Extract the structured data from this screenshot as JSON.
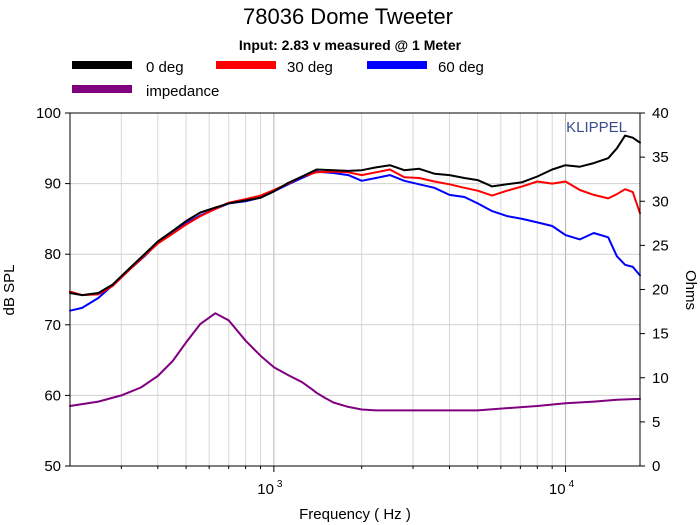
{
  "chart_data": {
    "type": "line",
    "title": "78036 Dome Tweeter",
    "subtitle": "Input: 2.83 v measured @ 1 Meter",
    "brand": "KLIPPEL",
    "xlabel": "Frequency ( Hz )",
    "ylabel": "dB SPL",
    "y2label": "Ohms",
    "x_scale": "log",
    "xlim": [
      200,
      18000
    ],
    "ylim": [
      50,
      100
    ],
    "y2lim": [
      0,
      40
    ],
    "grid": true,
    "x_ticks": [
      {
        "base": "10",
        "exp": "3",
        "value": 1000
      },
      {
        "base": "10",
        "exp": "4",
        "value": 10000
      }
    ],
    "y_ticks": [
      "50",
      "60",
      "70",
      "80",
      "90",
      "100"
    ],
    "y2_ticks": [
      "0",
      "5",
      "10",
      "15",
      "20",
      "25",
      "30",
      "35",
      "40"
    ],
    "legend": [
      {
        "label": "0 deg",
        "color": "#000000"
      },
      {
        "label": "30 deg",
        "color": "#ff0000"
      },
      {
        "label": "60 deg",
        "color": "#0000ff"
      },
      {
        "label": "impedance",
        "color": "#800080"
      }
    ],
    "series": [
      {
        "name": "0 deg",
        "color": "#000000",
        "axis": "left",
        "x": [
          200,
          220,
          250,
          280,
          320,
          360,
          400,
          450,
          500,
          560,
          630,
          700,
          800,
          900,
          1000,
          1120,
          1250,
          1400,
          1600,
          1800,
          2000,
          2240,
          2500,
          2800,
          3150,
          3550,
          4000,
          4500,
          5000,
          5600,
          6300,
          7100,
          8000,
          9000,
          10000,
          11200,
          12500,
          14000,
          15000,
          16000,
          17000,
          18000
        ],
        "values": [
          74.5,
          74.2,
          74.5,
          75.7,
          78.0,
          80.0,
          81.8,
          83.3,
          84.7,
          85.9,
          86.6,
          87.2,
          87.6,
          88.0,
          88.9,
          90.1,
          91.0,
          92.0,
          91.9,
          91.8,
          91.9,
          92.3,
          92.6,
          91.9,
          92.1,
          91.4,
          91.2,
          90.8,
          90.5,
          89.6,
          89.9,
          90.2,
          91.0,
          92.0,
          92.6,
          92.4,
          92.9,
          93.6,
          95.0,
          96.8,
          96.5,
          95.8
        ]
      },
      {
        "name": "30 deg",
        "color": "#ff0000",
        "axis": "left",
        "x": [
          200,
          220,
          250,
          280,
          320,
          360,
          400,
          450,
          500,
          560,
          630,
          700,
          800,
          900,
          1000,
          1120,
          1250,
          1400,
          1600,
          1800,
          2000,
          2240,
          2500,
          2800,
          3150,
          3550,
          4000,
          4500,
          5000,
          5600,
          6300,
          7100,
          8000,
          9000,
          10000,
          11200,
          12500,
          14000,
          15000,
          16000,
          17000,
          18000
        ],
        "values": [
          74.7,
          74.2,
          74.3,
          75.5,
          77.8,
          79.8,
          81.5,
          82.9,
          84.2,
          85.4,
          86.4,
          87.3,
          87.8,
          88.3,
          89.1,
          90.0,
          91.0,
          91.6,
          91.7,
          91.6,
          91.2,
          91.6,
          92.0,
          90.9,
          90.8,
          90.3,
          89.9,
          89.4,
          89.0,
          88.3,
          89.0,
          89.6,
          90.3,
          90.0,
          90.3,
          89.1,
          88.4,
          87.9,
          88.5,
          89.2,
          88.8,
          85.8
        ]
      },
      {
        "name": "60 deg",
        "color": "#0000ff",
        "axis": "left",
        "x": [
          200,
          220,
          250,
          280,
          320,
          360,
          400,
          450,
          500,
          560,
          630,
          700,
          800,
          900,
          1000,
          1120,
          1250,
          1400,
          1600,
          1800,
          2000,
          2240,
          2500,
          2800,
          3150,
          3550,
          4000,
          4500,
          5000,
          5600,
          6300,
          7100,
          8000,
          9000,
          10000,
          11200,
          12500,
          14000,
          15000,
          16000,
          17000,
          18000
        ],
        "values": [
          72.0,
          72.4,
          73.8,
          75.6,
          77.8,
          79.7,
          81.6,
          83.2,
          84.4,
          85.5,
          86.4,
          87.2,
          87.5,
          88.0,
          88.9,
          89.9,
          90.8,
          91.7,
          91.5,
          91.2,
          90.4,
          90.8,
          91.2,
          90.4,
          89.9,
          89.4,
          88.4,
          88.1,
          87.2,
          86.1,
          85.4,
          85.0,
          84.5,
          84.0,
          82.7,
          82.1,
          83.0,
          82.4,
          79.7,
          78.5,
          78.2,
          77.0
        ]
      },
      {
        "name": "impedance",
        "color": "#800080",
        "axis": "right",
        "x": [
          200,
          250,
          300,
          350,
          400,
          450,
          500,
          560,
          630,
          700,
          800,
          900,
          1000,
          1120,
          1250,
          1350,
          1400,
          1500,
          1600,
          1800,
          2000,
          2240,
          2500,
          3000,
          4000,
          5000,
          6000,
          8000,
          10000,
          12500,
          15000,
          18000
        ],
        "values": [
          6.8,
          7.3,
          8.0,
          8.9,
          10.2,
          11.9,
          14.0,
          16.1,
          17.3,
          16.5,
          14.2,
          12.5,
          11.2,
          10.3,
          9.5,
          8.7,
          8.3,
          7.7,
          7.2,
          6.7,
          6.4,
          6.3,
          6.3,
          6.3,
          6.3,
          6.3,
          6.5,
          6.8,
          7.1,
          7.3,
          7.5,
          7.6
        ]
      }
    ]
  }
}
